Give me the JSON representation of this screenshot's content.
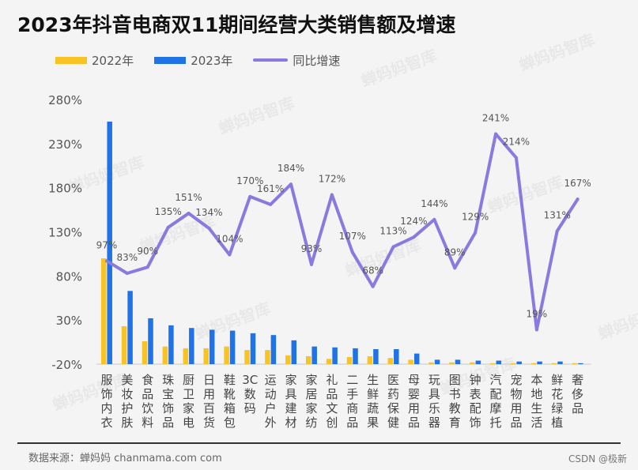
{
  "title": "2023年抖音电商双11期间经营大类销售额及增速",
  "legend": {
    "s2022": "2022年",
    "s2023": "2023年",
    "growth": "同比增速"
  },
  "source": "数据来源：蝉妈妈 chanmama.com com",
  "credit": "CSDN @极新",
  "watermark": "蝉妈妈智库",
  "colors": {
    "bar2022": "#f7c325",
    "bar2023": "#1f73e6",
    "growth": "#8a7ae0"
  },
  "chart_data": {
    "type": "bar",
    "categories": [
      "服饰内衣",
      "美妆护肤",
      "食品饮料",
      "珠宝饰品",
      "厨卫家电",
      "日用百货",
      "鞋靴箱包",
      "3C数码",
      "运动户外",
      "家具建材",
      "家居家纺",
      "礼品文创",
      "二手商品",
      "生鲜蔬果",
      "医药保健",
      "母婴用品",
      "玩具乐器",
      "图书教育",
      "钟表配饰",
      "汽配摩托",
      "宠物用品",
      "本地生活",
      "鲜花绿植",
      "奢侈品"
    ],
    "series": [
      {
        "name": "2022年",
        "values": [
          100,
          23,
          6,
          0,
          -2,
          -2,
          0,
          -4,
          -4,
          -10,
          -11,
          -14,
          -12,
          -11,
          -13,
          -15,
          -18,
          -18,
          -18,
          -19,
          -19,
          -19,
          -19,
          -20
        ]
      },
      {
        "name": "2023年",
        "values": [
          255,
          63,
          32,
          24,
          21,
          19,
          18,
          15,
          13,
          7,
          0,
          -1,
          -2,
          -3,
          -3,
          -8,
          -15,
          -15,
          -16,
          -16,
          -17,
          -17,
          -17,
          -19
        ]
      },
      {
        "name": "同比增速",
        "values": [
          97,
          83,
          90,
          135,
          151,
          134,
          104,
          170,
          161,
          184,
          93,
          172,
          107,
          68,
          113,
          124,
          144,
          89,
          129,
          241,
          214,
          19,
          131,
          167
        ]
      }
    ],
    "growth_labels": [
      "97%",
      "83%",
      "90%",
      "135%",
      "151%",
      "134%",
      "104%",
      "170%",
      "161%",
      "184%",
      "93%",
      "172%",
      "107%",
      "68%",
      "113%",
      "124%",
      "144%",
      "89%",
      "129%",
      "241%",
      "214%",
      "19%",
      "131%",
      "167%"
    ],
    "y_ticks": [
      "280%",
      "230%",
      "180%",
      "130%",
      "80%",
      "30%",
      "-20%"
    ],
    "ylim": [
      -20,
      280
    ],
    "xlabel": "",
    "ylabel": "",
    "grid": false,
    "legend_position": "top-left"
  }
}
